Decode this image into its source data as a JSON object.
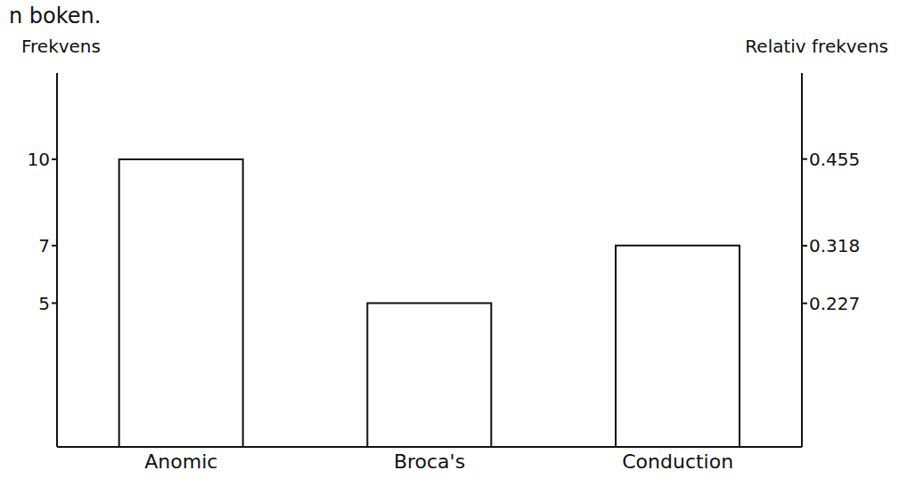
{
  "chart_data": {
    "type": "bar",
    "annotations": [
      "n boken."
    ],
    "categories": [
      "Anomic",
      "Broca's",
      "Conduction"
    ],
    "values": [
      10,
      5,
      7
    ],
    "color": "#ffffff",
    "ylabel": "Frekvens",
    "y2label": "Relativ frekvens",
    "ylim": [
      0,
      13
    ],
    "yticks": [
      5,
      7,
      10
    ],
    "y2lim": [
      0,
      0.591
    ],
    "y2ticks": [
      0.227,
      0.318,
      0.455
    ],
    "grid": false
  }
}
